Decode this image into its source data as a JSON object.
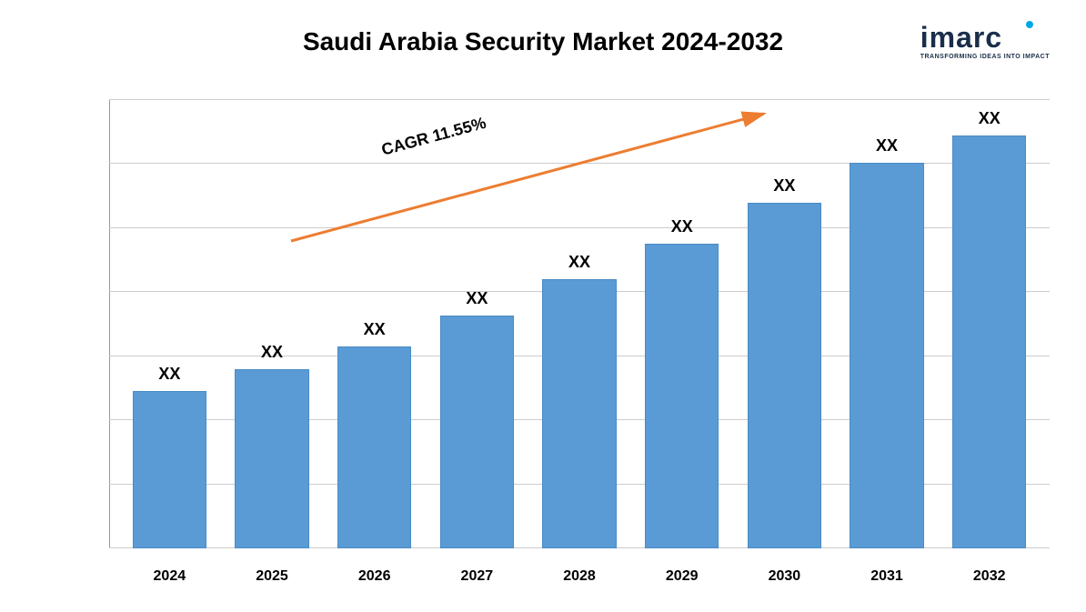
{
  "chart": {
    "type": "bar",
    "title": "Saudi Arabia Security Market 2024-2032",
    "title_fontsize": 28,
    "title_color": "#000000",
    "background_color": "#ffffff",
    "bar_color": "#5b9bd5",
    "bar_border_color": "#4a8bc4",
    "grid_color": "#cccccc",
    "axis_color": "#999999",
    "categories": [
      "2024",
      "2025",
      "2026",
      "2027",
      "2028",
      "2029",
      "2030",
      "2031",
      "2032"
    ],
    "values": [
      35,
      40,
      45,
      52,
      60,
      68,
      77,
      86,
      92
    ],
    "value_labels": [
      "XX",
      "XX",
      "XX",
      "XX",
      "XX",
      "XX",
      "XX",
      "XX",
      "XX"
    ],
    "value_label_fontsize": 18,
    "x_label_fontsize": 16,
    "ylim": [
      0,
      100
    ],
    "grid_positions": [
      0,
      14.3,
      28.6,
      42.9,
      57.2,
      71.5,
      85.8,
      100
    ],
    "cagr_text": "CAGR 11.55%",
    "cagr_fontsize": 18,
    "arrow_color": "#ed7d31",
    "arrow_start_x": 20,
    "arrow_start_y": 160,
    "arrow_end_x": 540,
    "arrow_end_y": 20,
    "arrow_width": 3
  },
  "logo": {
    "text": "imarc",
    "text_color": "#1a2e4a",
    "dot_color": "#00a8e8",
    "subtitle": "TRANSFORMING IDEAS INTO IMPACT"
  }
}
